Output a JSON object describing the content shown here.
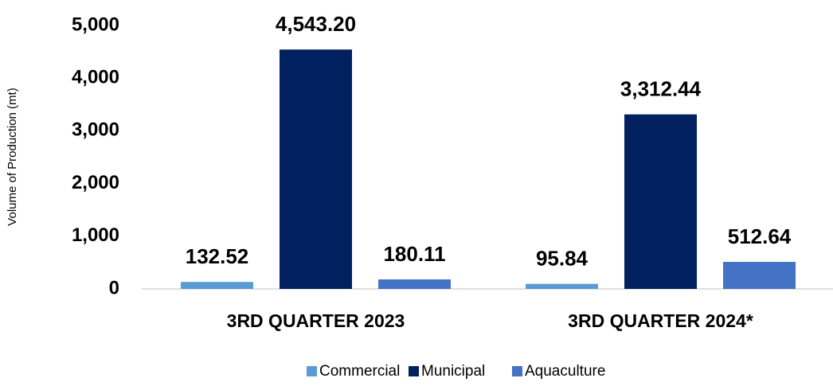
{
  "chart_data": {
    "type": "bar",
    "y_label": "Volume of Production (mt)",
    "categories": [
      "3RD QUARTER 2023",
      "3RD QUARTER 2024*"
    ],
    "series": [
      {
        "name": "Commercial",
        "color": "#5b9bd5",
        "values": [
          132.52,
          95.84
        ],
        "value_labels": [
          "132.52",
          "95.84"
        ]
      },
      {
        "name": "Municipal",
        "color": "#002060",
        "values": [
          4543.2,
          3312.44
        ],
        "value_labels": [
          "4,543.20",
          "3,312.44"
        ]
      },
      {
        "name": "Aquaculture",
        "color": "#4472c4",
        "values": [
          180.11,
          512.64
        ],
        "value_labels": [
          "180.11",
          "512.64"
        ]
      }
    ],
    "ylim": [
      0,
      5000
    ],
    "yticks": [
      0,
      {
        "value": 1000,
        "label": "1,000"
      },
      {
        "value": 2000,
        "label": "2,000"
      },
      {
        "value": 3000,
        "label": "3,000"
      },
      {
        "value": 4000,
        "label": "4,000"
      },
      {
        "value": 5000,
        "label": "5,000"
      }
    ],
    "grid": false,
    "legend": "bottom"
  }
}
